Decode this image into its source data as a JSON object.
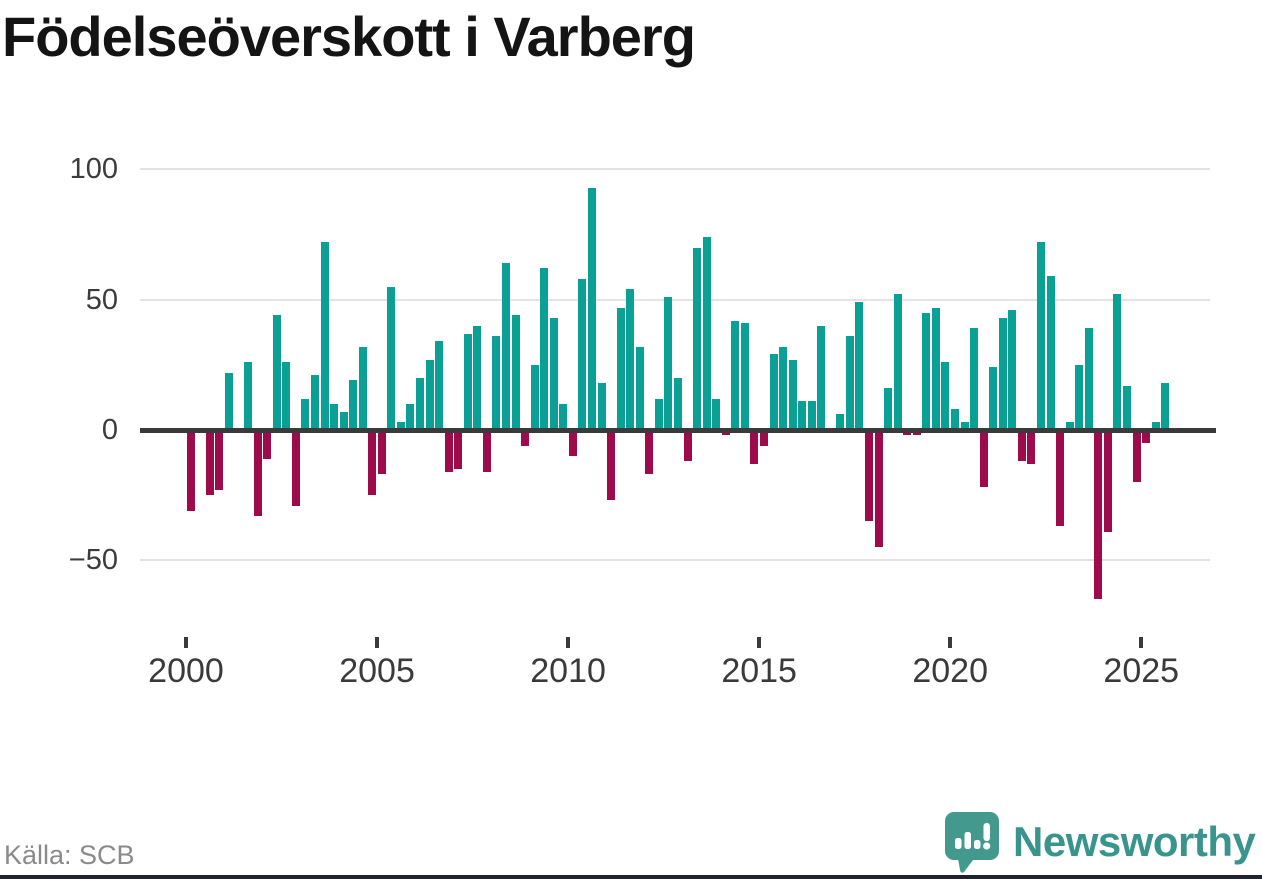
{
  "title": "Födelseöverskott i Varberg",
  "source": {
    "label": "Källa: SCB"
  },
  "branding": {
    "wordmark": "Newsworthy",
    "icon": "newsworthy-speech-bubble-chart-icon",
    "wordmark_color": "#3a948e",
    "icon_color": "#44998f",
    "footer_bar_color": "#20232d"
  },
  "chart_data": {
    "type": "bar",
    "title": "Födelseöverskott i Varberg",
    "period": "quarterly",
    "start": "2000-Q1",
    "end": "2025-Q3",
    "xlabel": "",
    "ylabel": "",
    "x_axis": {
      "tick_years": [
        2000,
        2005,
        2010,
        2015,
        2020,
        2025
      ]
    },
    "y_axis": {
      "ticks": [
        100,
        50,
        0,
        -50
      ],
      "range": [
        -75,
        105
      ],
      "grid": true
    },
    "colors": {
      "positive": "#0aa096",
      "negative": "#9e0b4c",
      "axis": "#3a3a3a",
      "grid": "#e3e3e3"
    },
    "values_by_year": [
      {
        "year": 2000,
        "q": [
          -31,
          0,
          -25,
          -23
        ]
      },
      {
        "year": 2001,
        "q": [
          22,
          0,
          26,
          -33
        ]
      },
      {
        "year": 2002,
        "q": [
          -11,
          44,
          26,
          -29
        ]
      },
      {
        "year": 2003,
        "q": [
          12,
          21,
          72,
          10
        ]
      },
      {
        "year": 2004,
        "q": [
          7,
          19,
          32,
          -25
        ]
      },
      {
        "year": 2005,
        "q": [
          -17,
          55,
          3,
          10
        ]
      },
      {
        "year": 2006,
        "q": [
          20,
          27,
          34,
          -16
        ]
      },
      {
        "year": 2007,
        "q": [
          -15,
          37,
          40,
          -16
        ]
      },
      {
        "year": 2008,
        "q": [
          36,
          64,
          44,
          -6
        ]
      },
      {
        "year": 2009,
        "q": [
          25,
          62,
          43,
          10
        ]
      },
      {
        "year": 2010,
        "q": [
          -10,
          58,
          93,
          18
        ]
      },
      {
        "year": 2011,
        "q": [
          -27,
          47,
          54,
          32
        ]
      },
      {
        "year": 2012,
        "q": [
          -17,
          12,
          51,
          20
        ]
      },
      {
        "year": 2013,
        "q": [
          -12,
          70,
          74,
          12
        ]
      },
      {
        "year": 2014,
        "q": [
          -2,
          42,
          41,
          -13
        ]
      },
      {
        "year": 2015,
        "q": [
          -6,
          29,
          32,
          27
        ]
      },
      {
        "year": 2016,
        "q": [
          11,
          11,
          40,
          0
        ]
      },
      {
        "year": 2017,
        "q": [
          6,
          36,
          49,
          -35
        ]
      },
      {
        "year": 2018,
        "q": [
          -45,
          16,
          52,
          -2
        ]
      },
      {
        "year": 2019,
        "q": [
          -2,
          45,
          47,
          26
        ]
      },
      {
        "year": 2020,
        "q": [
          8,
          3,
          39,
          -22
        ]
      },
      {
        "year": 2021,
        "q": [
          24,
          43,
          46,
          -12
        ]
      },
      {
        "year": 2022,
        "q": [
          -13,
          72,
          59,
          -37
        ]
      },
      {
        "year": 2023,
        "q": [
          3,
          25,
          39,
          -65
        ]
      },
      {
        "year": 2024,
        "q": [
          -39,
          52,
          17,
          -20
        ]
      },
      {
        "year": 2025,
        "q": [
          -5,
          3,
          18
        ]
      }
    ]
  }
}
